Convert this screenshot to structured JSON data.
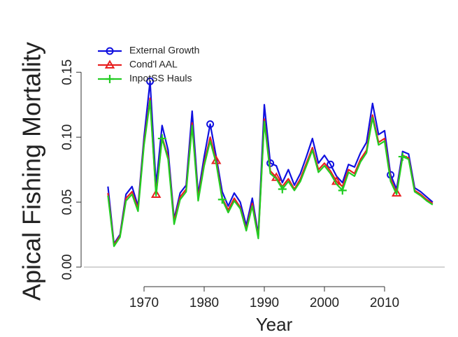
{
  "chart_data": {
    "type": "line",
    "xlabel": "Year",
    "ylabel": "Apical Fishing Mortality",
    "x": [
      1964,
      1965,
      1966,
      1967,
      1968,
      1969,
      1970,
      1971,
      1972,
      1973,
      1974,
      1975,
      1976,
      1977,
      1978,
      1979,
      1980,
      1981,
      1982,
      1983,
      1984,
      1985,
      1986,
      1987,
      1988,
      1989,
      1990,
      1991,
      1992,
      1993,
      1994,
      1995,
      1996,
      1997,
      1998,
      1999,
      2000,
      2001,
      2002,
      2003,
      2004,
      2005,
      2006,
      2007,
      2008,
      2009,
      2010,
      2011,
      2012,
      2013,
      2014,
      2015,
      2016,
      2017,
      2018
    ],
    "series": [
      {
        "name": "External Growth",
        "color": "#1010e0",
        "marker": "circle",
        "marker_x": [
          1971,
          1981,
          1991,
          2001,
          2011
        ],
        "values": [
          0.062,
          0.018,
          0.025,
          0.056,
          0.062,
          0.047,
          0.1,
          0.143,
          0.063,
          0.109,
          0.09,
          0.037,
          0.057,
          0.063,
          0.12,
          0.056,
          0.085,
          0.11,
          0.085,
          0.058,
          0.047,
          0.057,
          0.05,
          0.032,
          0.053,
          0.025,
          0.125,
          0.08,
          0.078,
          0.065,
          0.075,
          0.063,
          0.072,
          0.085,
          0.099,
          0.08,
          0.086,
          0.079,
          0.07,
          0.065,
          0.079,
          0.077,
          0.088,
          0.096,
          0.126,
          0.102,
          0.105,
          0.071,
          0.06,
          0.089,
          0.087,
          0.061,
          0.058,
          0.054,
          0.05
        ]
      },
      {
        "name": "Cond'l AAL",
        "color": "#e82020",
        "marker": "triangle",
        "marker_x": [
          1972,
          1982,
          1992,
          2002,
          2012
        ],
        "values": [
          0.057,
          0.017,
          0.024,
          0.053,
          0.058,
          0.045,
          0.096,
          0.13,
          0.056,
          0.1,
          0.085,
          0.035,
          0.054,
          0.06,
          0.111,
          0.053,
          0.08,
          0.1,
          0.082,
          0.053,
          0.044,
          0.053,
          0.046,
          0.029,
          0.049,
          0.023,
          0.114,
          0.074,
          0.069,
          0.062,
          0.068,
          0.06,
          0.068,
          0.08,
          0.092,
          0.075,
          0.08,
          0.074,
          0.066,
          0.062,
          0.075,
          0.072,
          0.083,
          0.09,
          0.117,
          0.096,
          0.099,
          0.068,
          0.057,
          0.086,
          0.084,
          0.059,
          0.056,
          0.052,
          0.049
        ]
      },
      {
        "name": "InpotSS Hauls",
        "color": "#22cc22",
        "marker": "plus",
        "marker_x": [
          1973,
          1983,
          1993,
          2003,
          2013
        ],
        "values": [
          0.055,
          0.016,
          0.023,
          0.051,
          0.056,
          0.043,
          0.094,
          0.128,
          0.055,
          0.099,
          0.083,
          0.033,
          0.052,
          0.058,
          0.109,
          0.051,
          0.078,
          0.097,
          0.08,
          0.052,
          0.042,
          0.051,
          0.045,
          0.028,
          0.047,
          0.022,
          0.112,
          0.072,
          0.068,
          0.06,
          0.066,
          0.059,
          0.066,
          0.078,
          0.09,
          0.073,
          0.078,
          0.072,
          0.064,
          0.059,
          0.073,
          0.07,
          0.081,
          0.088,
          0.115,
          0.094,
          0.097,
          0.066,
          0.056,
          0.085,
          0.083,
          0.058,
          0.055,
          0.051,
          0.048
        ]
      }
    ],
    "xlim": [
      1960,
      2020
    ],
    "ylim": [
      -0.007,
      0.162
    ],
    "xticks": [
      1970,
      1980,
      1990,
      2000,
      2010
    ],
    "yticks": [
      {
        "value": 0,
        "label": "0.00"
      },
      {
        "value": 0.05,
        "label": "0.05"
      },
      {
        "value": 0.1,
        "label": "0.10"
      },
      {
        "value": 0.15,
        "label": "0.15"
      }
    ],
    "reference_line": 0,
    "legend": "top-left"
  }
}
